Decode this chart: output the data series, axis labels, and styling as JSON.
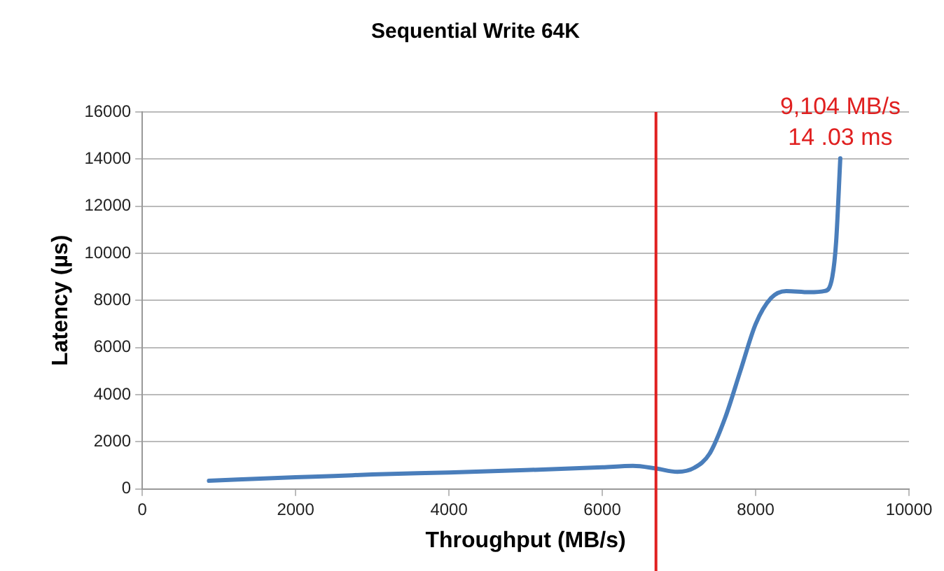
{
  "chart_data": {
    "type": "line",
    "title": "Sequential Write 64K",
    "xlabel": "Throughput (MB/s)",
    "ylabel": "Latency (µs)",
    "series": [
      {
        "color": "#4a7ebb",
        "x": [
          870,
          2000,
          2500,
          3000,
          4000,
          5000,
          6000,
          6400,
          6700,
          6980,
          7200,
          7400,
          7600,
          7800,
          8000,
          8200,
          8400,
          8700,
          8900,
          9000,
          9050,
          9104
        ],
        "values": [
          350,
          500,
          550,
          620,
          700,
          800,
          920,
          980,
          870,
          730,
          900,
          1500,
          3000,
          5000,
          7000,
          8100,
          8400,
          8350,
          8400,
          9000,
          10500,
          14030
        ]
      }
    ],
    "xlim": [
      0,
      10000
    ],
    "xticks": [
      0,
      2000,
      4000,
      6000,
      8000,
      10000
    ],
    "ylim": [
      0,
      16000
    ],
    "yticks": [
      0,
      2000,
      4000,
      6000,
      8000,
      10000,
      12000,
      14000,
      16000
    ],
    "grid": "y",
    "legend": false,
    "marker": "none",
    "line_style": "solid",
    "ref_lines": [
      {
        "axis": "x",
        "value": 6700,
        "color": "#e02020"
      }
    ],
    "annotations": [
      {
        "text": "9,104 MB/s\n14 .03 ms",
        "x": 9104,
        "y": 14030
      }
    ]
  }
}
